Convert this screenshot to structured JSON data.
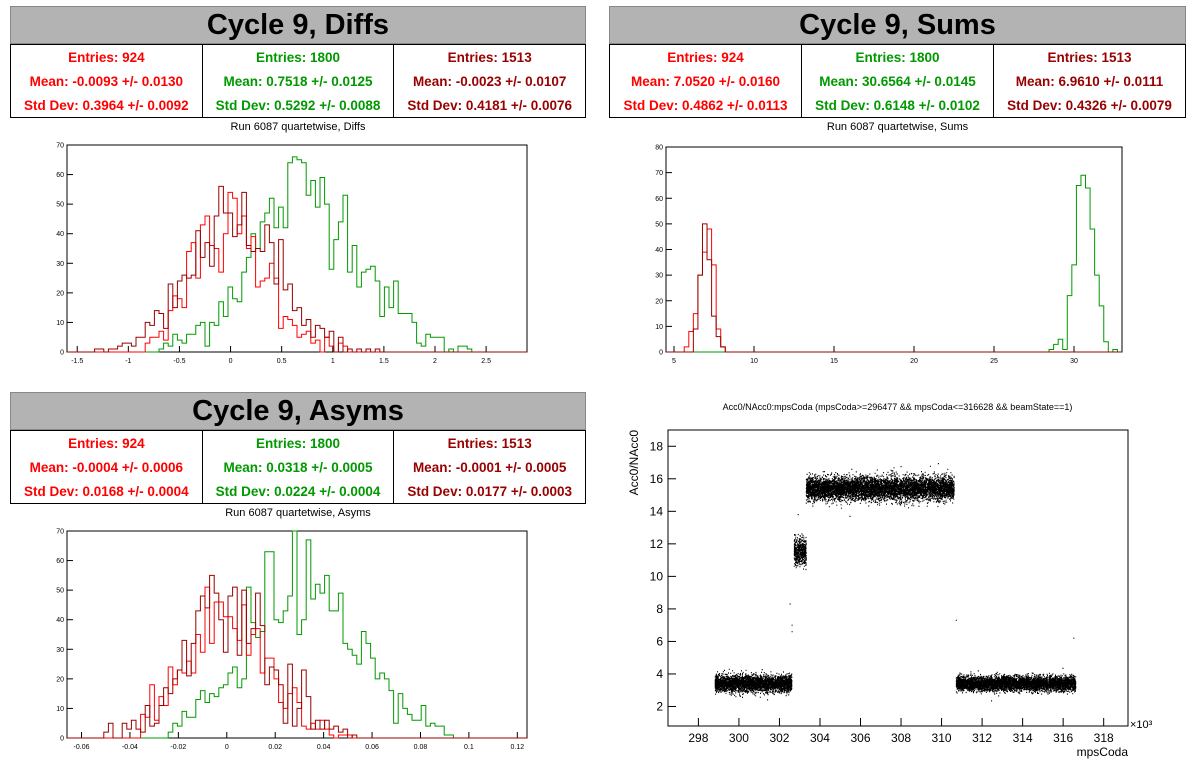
{
  "colors": {
    "red": "#ff0000",
    "green": "#009900",
    "darkred": "#990000",
    "black": "#000000"
  },
  "panels": {
    "diffs": {
      "title": "Cycle 9, Diffs",
      "run_title": "Run 6087 quartetwise, Diffs",
      "stats": [
        {
          "entries": "Entries: 924",
          "mean": "Mean: -0.0093 +/- 0.0130",
          "std": "Std Dev: 0.3964 +/- 0.0092",
          "color": "#ff0000"
        },
        {
          "entries": "Entries: 1800",
          "mean": "Mean: 0.7518 +/- 0.0125",
          "std": "Std Dev: 0.5292 +/- 0.0088",
          "color": "#009900"
        },
        {
          "entries": "Entries: 1513",
          "mean": "Mean: -0.0023 +/- 0.0107",
          "std": "Std Dev: 0.4181 +/- 0.0076",
          "color": "#990000"
        }
      ]
    },
    "sums": {
      "title": "Cycle 9, Sums",
      "run_title": "Run 6087 quartetwise, Sums",
      "stats": [
        {
          "entries": "Entries: 924",
          "mean": "Mean: 7.0520 +/- 0.0160",
          "std": "Std Dev: 0.4862 +/- 0.0113",
          "color": "#ff0000"
        },
        {
          "entries": "Entries: 1800",
          "mean": "Mean: 30.6564 +/- 0.0145",
          "std": "Std Dev: 0.6148 +/- 0.0102",
          "color": "#009900"
        },
        {
          "entries": "Entries: 1513",
          "mean": "Mean: 6.9610 +/- 0.0111",
          "std": "Std Dev: 0.4326 +/- 0.0079",
          "color": "#990000"
        }
      ]
    },
    "asyms": {
      "title": "Cycle 9, Asyms",
      "run_title": "Run 6087 quartetwise, Asyms",
      "stats": [
        {
          "entries": "Entries: 924",
          "mean": "Mean: -0.0004 +/- 0.0006",
          "std": "Std Dev: 0.0168 +/- 0.0004",
          "color": "#ff0000"
        },
        {
          "entries": "Entries: 1800",
          "mean": "Mean: 0.0318 +/- 0.0005",
          "std": "Std Dev: 0.0224 +/- 0.0004",
          "color": "#009900"
        },
        {
          "entries": "Entries: 1513",
          "mean": "Mean: -0.0001 +/- 0.0005",
          "std": "Std Dev: 0.0177 +/- 0.0003",
          "color": "#990000"
        }
      ]
    },
    "scatter": {
      "title": "Acc0/NAcc0:mpsCoda (mpsCoda>=296477 && mpsCoda<=316628 && beamState==1)"
    }
  },
  "chart_data": [
    {
      "type": "histogram",
      "id": "diffs",
      "xlim": [
        -1.6,
        2.9
      ],
      "ylim": [
        0,
        70
      ],
      "xticks": [
        -1.5,
        -1,
        -0.5,
        0,
        0.5,
        1,
        1.5,
        2,
        2.5
      ],
      "yticks": [
        0,
        10,
        20,
        30,
        40,
        50,
        60,
        70
      ],
      "series": [
        {
          "color": "#009900",
          "mean": 0.7518,
          "std": 0.5292,
          "peak": 68,
          "xmin": -0.7,
          "xmax": 2.35
        },
        {
          "color": "#ff0000",
          "mean": -0.0093,
          "std": 0.3964,
          "peak": 50,
          "xmin": -0.85,
          "xmax": 1.3
        },
        {
          "color": "#990000",
          "mean": -0.0023,
          "std": 0.4181,
          "peak": 57,
          "xmin": -1.35,
          "xmax": 1.45
        }
      ]
    },
    {
      "type": "histogram",
      "id": "sums",
      "xlim": [
        4.5,
        33
      ],
      "ylim": [
        0,
        80
      ],
      "xticks": [
        5,
        10,
        15,
        20,
        25,
        30
      ],
      "yticks": [
        0,
        10,
        20,
        30,
        40,
        50,
        60,
        70,
        80
      ],
      "series": [
        {
          "color": "#009900",
          "mean": 30.6564,
          "std": 0.6148,
          "peak": 78,
          "xmin": 28.5,
          "xmax": 32.7
        },
        {
          "color": "#ff0000",
          "mean": 7.052,
          "std": 0.4862,
          "peak": 48,
          "xmin": 5.6,
          "xmax": 8.5
        },
        {
          "color": "#990000",
          "mean": 6.961,
          "std": 0.4326,
          "peak": 55,
          "xmin": 5.2,
          "xmax": 8.5
        }
      ]
    },
    {
      "type": "histogram",
      "id": "asyms",
      "xlim": [
        -0.066,
        0.124
      ],
      "ylim": [
        0,
        70
      ],
      "xticks": [
        -0.06,
        -0.04,
        -0.02,
        0,
        0.02,
        0.04,
        0.06,
        0.08,
        0.1,
        0.12
      ],
      "yticks": [
        0,
        10,
        20,
        30,
        40,
        50,
        60,
        70
      ],
      "series": [
        {
          "color": "#009900",
          "mean": 0.0318,
          "std": 0.0224,
          "peak": 68,
          "xmin": -0.025,
          "xmax": 0.11
        },
        {
          "color": "#ff0000",
          "mean": -0.0004,
          "std": 0.0168,
          "peak": 50,
          "xmin": -0.035,
          "xmax": 0.06
        },
        {
          "color": "#990000",
          "mean": -0.0001,
          "std": 0.0177,
          "peak": 56,
          "xmin": -0.05,
          "xmax": 0.055
        }
      ]
    },
    {
      "type": "scatter",
      "id": "scatter",
      "xlabel": "mpsCoda",
      "ylabel": "Acc0/NAcc0",
      "x_multiplier_label": "×10³",
      "xlim": [
        296.5,
        319.2
      ],
      "ylim": [
        0.8,
        19
      ],
      "xticks": [
        298,
        300,
        302,
        304,
        306,
        308,
        310,
        312,
        314,
        316,
        318
      ],
      "yticks": [
        2,
        4,
        6,
        8,
        10,
        12,
        14,
        16,
        18
      ],
      "clusters": [
        {
          "x": [
            298.8,
            302.6
          ],
          "y_center": 3.4,
          "y_spread": 0.45
        },
        {
          "x": [
            302.7,
            303.3
          ],
          "y_center": 11.5,
          "y_spread": 0.7
        },
        {
          "x": [
            303.3,
            310.6
          ],
          "y_center": 15.4,
          "y_spread": 0.65
        },
        {
          "x": [
            310.7,
            316.6
          ],
          "y_center": 3.4,
          "y_spread": 0.4
        }
      ]
    }
  ]
}
